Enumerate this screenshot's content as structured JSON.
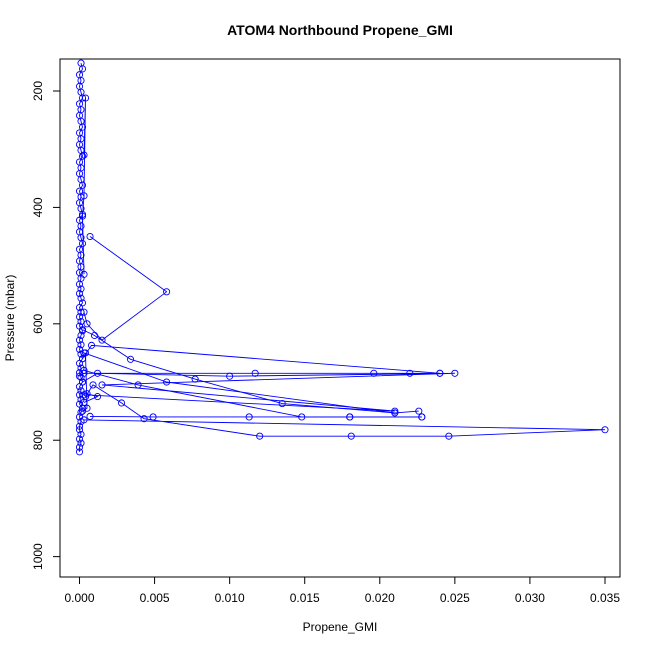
{
  "chart_data": {
    "type": "line",
    "title": "ATOM4 Northbound Propene_GMI",
    "xlabel": "Propene_GMI",
    "ylabel": "Pressure (mbar)",
    "xlim": [
      -0.0013,
      0.036
    ],
    "ylim": [
      1035,
      145
    ],
    "y_reversed": true,
    "grid": false,
    "series_color": "#0000ff",
    "x_ticks": [
      {
        "value": 0.0,
        "label": "0.000"
      },
      {
        "value": 0.005,
        "label": "0.005"
      },
      {
        "value": 0.01,
        "label": "0.010"
      },
      {
        "value": 0.015,
        "label": "0.015"
      },
      {
        "value": 0.02,
        "label": "0.020"
      },
      {
        "value": 0.025,
        "label": "0.025"
      },
      {
        "value": 0.03,
        "label": "0.030"
      },
      {
        "value": 0.035,
        "label": "0.035"
      }
    ],
    "y_ticks": [
      {
        "value": 200,
        "label": "200"
      },
      {
        "value": 400,
        "label": "400"
      },
      {
        "value": 600,
        "label": "600"
      },
      {
        "value": 800,
        "label": "800"
      },
      {
        "value": 1000,
        "label": "1000"
      }
    ],
    "series": [
      {
        "points": [
          [
            0.0,
            820
          ],
          [
            0.0,
            812
          ],
          [
            0.0001,
            805
          ],
          [
            0.0,
            798
          ],
          [
            0.0001,
            790
          ],
          [
            0.0,
            782
          ],
          [
            0.0,
            776
          ],
          [
            0.0001,
            768
          ],
          [
            0.0,
            760
          ],
          [
            0.0001,
            752
          ],
          [
            0.0002,
            745
          ],
          [
            0.0,
            738
          ],
          [
            0.0001,
            730
          ],
          [
            0.0,
            722
          ],
          [
            0.0001,
            715
          ],
          [
            0.0,
            708
          ],
          [
            0.0002,
            700
          ],
          [
            0.0001,
            692
          ],
          [
            0.0,
            684
          ],
          [
            0.0001,
            676
          ],
          [
            0.0,
            668
          ],
          [
            0.0002,
            660
          ],
          [
            0.0001,
            652
          ],
          [
            0.0,
            644
          ],
          [
            0.0001,
            636
          ],
          [
            0.0,
            628
          ],
          [
            0.0001,
            620
          ],
          [
            0.0002,
            612
          ],
          [
            0.0,
            604
          ],
          [
            0.0001,
            596
          ],
          [
            0.0,
            588
          ],
          [
            0.0001,
            580
          ],
          [
            0.0,
            572
          ],
          [
            0.0002,
            564
          ],
          [
            0.0001,
            556
          ],
          [
            0.0,
            548
          ],
          [
            0.0001,
            540
          ],
          [
            0.0,
            532
          ],
          [
            0.0001,
            522
          ],
          [
            0.0,
            512
          ],
          [
            0.0001,
            502
          ],
          [
            0.0,
            492
          ],
          [
            0.0001,
            482
          ],
          [
            0.0,
            472
          ],
          [
            0.0002,
            462
          ],
          [
            0.0001,
            452
          ],
          [
            0.0,
            442
          ],
          [
            0.0001,
            432
          ],
          [
            0.0,
            422
          ],
          [
            0.0002,
            412
          ],
          [
            0.0001,
            402
          ],
          [
            0.0,
            392
          ],
          [
            0.0001,
            382
          ],
          [
            0.0,
            372
          ],
          [
            0.0002,
            362
          ],
          [
            0.0001,
            352
          ],
          [
            0.0,
            342
          ],
          [
            0.0001,
            332
          ],
          [
            0.0,
            322
          ],
          [
            0.0002,
            312
          ],
          [
            0.0001,
            302
          ],
          [
            0.0,
            292
          ],
          [
            0.0001,
            282
          ],
          [
            0.0,
            272
          ],
          [
            0.0002,
            262
          ],
          [
            0.0001,
            252
          ],
          [
            0.0,
            242
          ],
          [
            0.0001,
            232
          ],
          [
            0.0,
            222
          ],
          [
            0.0002,
            212
          ],
          [
            0.0001,
            202
          ],
          [
            0.0,
            192
          ],
          [
            0.0001,
            182
          ],
          [
            0.0,
            172
          ],
          [
            0.0002,
            162
          ],
          [
            0.0001,
            152
          ]
        ]
      },
      {
        "points": [
          [
            0.0002,
            700
          ],
          [
            0.0012,
            685
          ],
          [
            0.01,
            690
          ],
          [
            0.025,
            685
          ],
          [
            0.0015,
            705
          ],
          [
            0.021,
            750
          ],
          [
            0.0003,
            722
          ]
        ]
      },
      {
        "points": [
          [
            0.0,
            690
          ],
          [
            0.0003,
            685
          ],
          [
            0.0117,
            685
          ],
          [
            0.0196,
            685
          ],
          [
            0.022,
            685
          ],
          [
            0.024,
            685
          ]
        ]
      },
      {
        "points": [
          [
            0.0002,
            660
          ],
          [
            0.0008,
            637
          ],
          [
            0.024,
            685
          ]
        ]
      },
      {
        "points": [
          [
            0.0003,
            580
          ],
          [
            0.0005,
            600
          ],
          [
            0.0015,
            628
          ],
          [
            0.0058,
            545
          ],
          [
            0.0007,
            450
          ]
        ]
      },
      {
        "points": [
          [
            0.0002,
            610
          ],
          [
            0.001,
            620
          ],
          [
            0.0034,
            661
          ],
          [
            0.0077,
            695
          ],
          [
            0.0135,
            737
          ],
          [
            0.021,
            753
          ],
          [
            0.0226,
            750
          ]
        ]
      },
      {
        "points": [
          [
            0.0003,
            650
          ],
          [
            0.0058,
            700
          ],
          [
            0.021,
            753
          ]
        ]
      },
      {
        "points": [
          [
            0.0003,
            680
          ],
          [
            0.0039,
            705
          ],
          [
            0.0148,
            760
          ],
          [
            0.018,
            760
          ],
          [
            0.0228,
            760
          ]
        ]
      },
      {
        "points": [
          [
            0.0007,
            759
          ],
          [
            0.0049,
            760
          ],
          [
            0.0113,
            760
          ],
          [
            0.018,
            760
          ],
          [
            0.0228,
            760
          ]
        ]
      },
      {
        "points": [
          [
            0.0004,
            725
          ],
          [
            0.0009,
            705
          ],
          [
            0.0028,
            736
          ],
          [
            0.0043,
            763
          ],
          [
            0.012,
            793
          ],
          [
            0.0181,
            793
          ],
          [
            0.0246,
            793
          ],
          [
            0.035,
            782
          ],
          [
            0.0003,
            765
          ]
        ]
      },
      {
        "points": [
          [
            0.0005,
            720
          ],
          [
            0.0012,
            725
          ],
          [
            0.0003,
            735
          ]
        ]
      },
      {
        "points": [
          [
            0.0004,
            650
          ],
          [
            0.0005,
            745
          ],
          [
            0.0002,
            750
          ]
        ]
      },
      {
        "points": [
          [
            0.0003,
            310
          ],
          [
            0.0004,
            212
          ],
          [
            0.0003,
            380
          ],
          [
            0.0002,
            415
          ],
          [
            0.0003,
            515
          ]
        ]
      }
    ]
  }
}
